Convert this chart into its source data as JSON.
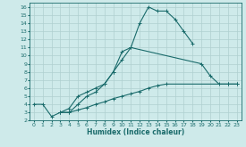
{
  "xlabel": "Humidex (Indice chaleur)",
  "background_color": "#ceeaea",
  "grid_color": "#afd0d0",
  "line_color": "#1a6b6b",
  "xlim": [
    -0.5,
    23.5
  ],
  "ylim": [
    2,
    16.5
  ],
  "xticks": [
    0,
    1,
    2,
    3,
    4,
    5,
    6,
    7,
    8,
    9,
    10,
    11,
    12,
    13,
    14,
    15,
    16,
    17,
    18,
    19,
    20,
    21,
    22,
    23
  ],
  "yticks": [
    2,
    3,
    4,
    5,
    6,
    7,
    8,
    9,
    10,
    11,
    12,
    13,
    14,
    15,
    16
  ],
  "series": [
    {
      "x": [
        0,
        1,
        2,
        3,
        4,
        5,
        6,
        7,
        8,
        9,
        10,
        11,
        12,
        13,
        14,
        15,
        16,
        17,
        18,
        19,
        20,
        21,
        22,
        23
      ],
      "y": [
        4.0,
        4.0,
        2.5,
        3.0,
        3.5,
        5.0,
        5.5,
        6.0,
        6.5,
        8.0,
        10.5,
        11.0,
        14.0,
        16.0,
        15.5,
        15.5,
        14.5,
        13.0,
        11.5,
        null,
        null,
        null,
        null,
        null
      ]
    },
    {
      "x": [
        0,
        1,
        2,
        3,
        4,
        5,
        6,
        7,
        8,
        9,
        10,
        11,
        12,
        13,
        14,
        15,
        16,
        17,
        18,
        19,
        20,
        21,
        22,
        23
      ],
      "y": [
        null,
        null,
        null,
        3.0,
        3.0,
        4.0,
        5.0,
        5.5,
        6.5,
        8.0,
        9.5,
        11.0,
        null,
        null,
        null,
        null,
        null,
        null,
        null,
        9.0,
        7.5,
        6.5,
        6.5,
        6.5
      ]
    },
    {
      "x": [
        0,
        1,
        2,
        3,
        4,
        5,
        6,
        7,
        8,
        9,
        10,
        11,
        12,
        13,
        14,
        15,
        16,
        17,
        18,
        19,
        20,
        21,
        22,
        23
      ],
      "y": [
        null,
        null,
        null,
        3.0,
        3.0,
        3.3,
        3.6,
        4.0,
        4.3,
        4.7,
        5.0,
        5.3,
        5.6,
        6.0,
        6.3,
        6.5,
        null,
        null,
        null,
        null,
        null,
        null,
        6.5,
        6.5
      ]
    }
  ]
}
